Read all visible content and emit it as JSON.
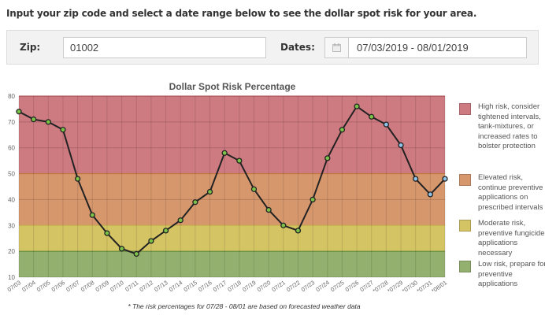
{
  "intro": "Input your zip code and select a date range below to see the dollar spot risk for your area.",
  "form": {
    "zip_label": "Zip:",
    "zip_value": "01002",
    "dates_label": "Dates:",
    "dates_value": "07/03/2019 - 08/01/2019",
    "calendar_icon": "calendar-icon"
  },
  "chart_data": {
    "type": "line",
    "title": "Dollar Spot Risk Percentage",
    "xlabel": "",
    "ylabel": "",
    "ylim": [
      10,
      80
    ],
    "yticks": [
      "10",
      "20",
      "30",
      "40",
      "50",
      "60",
      "70",
      "80"
    ],
    "categories": [
      "07/03",
      "07/04",
      "07/05",
      "07/06",
      "07/07",
      "07/08",
      "07/09",
      "07/10",
      "07/11",
      "07/12",
      "07/13",
      "07/14",
      "07/15",
      "07/16",
      "07/17",
      "07/18",
      "07/19",
      "07/20",
      "07/21",
      "07/22",
      "07/23",
      "07/24",
      "07/25",
      "07/26",
      "07/27",
      "*07/28",
      "*07/29",
      "*07/30",
      "*07/31",
      "*08/01"
    ],
    "values": [
      74,
      71,
      70,
      67,
      48,
      34,
      27,
      21,
      19,
      24,
      28,
      32,
      39,
      43,
      58,
      55,
      44,
      36,
      30,
      28,
      40,
      56,
      67,
      76,
      72,
      69,
      61,
      48,
      42,
      48
    ],
    "forecast_from_index": 25,
    "grid": true,
    "bands": [
      {
        "from": 50,
        "to": 80,
        "color": "#cd7a80",
        "label": "High risk, consider tightened intervals, tank-mixtures, or increased rates to bolster protection"
      },
      {
        "from": 30,
        "to": 50,
        "color": "#d6976d",
        "label": "Elevated risk, continue preventive applications on prescribed intervals"
      },
      {
        "from": 20,
        "to": 30,
        "color": "#d4c464",
        "label": "Moderate risk, preventive fungicide applications necessary"
      },
      {
        "from": 10,
        "to": 20,
        "color": "#93b06e",
        "label": "Low risk, prepare for preventive applications"
      }
    ],
    "legend_position": "right",
    "footnote": "* The risk percentages for 07/28 - 08/01 are based on forecasted weather data",
    "observed_point_color": "#7cc24a",
    "forecast_point_color": "#8ec3ea"
  }
}
